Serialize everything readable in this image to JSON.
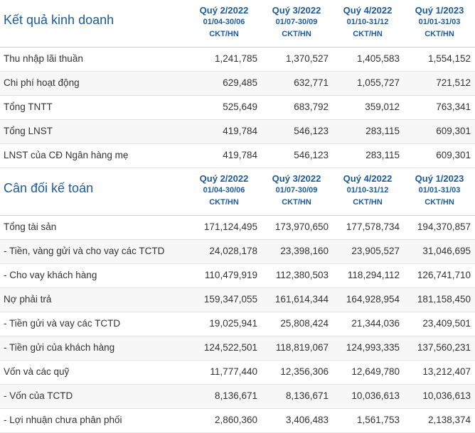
{
  "income": {
    "title": "Kết quả kinh doanh",
    "columns": [
      {
        "quarter": "Quý 2/2022",
        "dates": "01/04-30/06",
        "unit": "CKT/HN"
      },
      {
        "quarter": "Quý 3/2022",
        "dates": "01/07-30/09",
        "unit": "CKT/HN"
      },
      {
        "quarter": "Quý 4/2022",
        "dates": "01/10-31/12",
        "unit": "CKT/HN"
      },
      {
        "quarter": "Quý 1/2023",
        "dates": "01/01-31/03",
        "unit": "CKT/HN"
      }
    ],
    "rows": [
      {
        "label": "Thu nhập lãi thuần",
        "values": [
          "1,241,785",
          "1,370,527",
          "1,405,583",
          "1,554,152"
        ]
      },
      {
        "label": "Chi phí hoạt động",
        "values": [
          "629,485",
          "632,771",
          "1,055,727",
          "721,512"
        ]
      },
      {
        "label": "Tổng TNTT",
        "values": [
          "525,649",
          "683,792",
          "359,012",
          "763,341"
        ]
      },
      {
        "label": "Tổng LNST",
        "values": [
          "419,784",
          "546,123",
          "283,115",
          "609,301"
        ]
      },
      {
        "label": "LNST của CĐ Ngân hàng mẹ",
        "values": [
          "419,784",
          "546,123",
          "283,115",
          "609,301"
        ]
      }
    ]
  },
  "balance": {
    "title": "Cân đối kế toán",
    "columns": [
      {
        "quarter": "Quý 2/2022",
        "dates": "01/04-30/06",
        "unit": "CKT/HN"
      },
      {
        "quarter": "Quý 3/2022",
        "dates": "01/07-30/09",
        "unit": "CKT/HN"
      },
      {
        "quarter": "Quý 4/2022",
        "dates": "01/10-31/12",
        "unit": "CKT/HN"
      },
      {
        "quarter": "Quý 1/2023",
        "dates": "01/01-31/03",
        "unit": "CKT/HN"
      }
    ],
    "rows": [
      {
        "label": "Tổng tài sản",
        "values": [
          "171,124,495",
          "173,970,650",
          "177,578,734",
          "194,370,857"
        ]
      },
      {
        "label": "- Tiền, vàng gửi và cho vay các TCTD",
        "values": [
          "24,028,178",
          "23,398,160",
          "23,905,527",
          "31,046,695"
        ]
      },
      {
        "label": "- Cho vay khách hàng",
        "values": [
          "110,479,919",
          "112,380,503",
          "118,294,112",
          "126,741,710"
        ]
      },
      {
        "label": "Nợ phải trả",
        "values": [
          "159,347,055",
          "161,614,344",
          "164,928,954",
          "181,158,450"
        ]
      },
      {
        "label": "- Tiền gửi và vay các TCTD",
        "values": [
          "19,025,941",
          "25,808,424",
          "21,344,036",
          "23,409,501"
        ]
      },
      {
        "label": "- Tiền gửi của khách hàng",
        "values": [
          "124,522,501",
          "118,819,067",
          "124,993,335",
          "137,560,231"
        ]
      },
      {
        "label": "Vốn và các quỹ",
        "values": [
          "11,777,440",
          "12,356,306",
          "12,649,780",
          "13,212,407"
        ]
      },
      {
        "label": "- Vốn của TCTD",
        "values": [
          "8,136,671",
          "8,136,671",
          "10,036,613",
          "10,036,613"
        ]
      },
      {
        "label": "- Lợi nhuận chưa phân phối",
        "values": [
          "2,860,360",
          "3,406,483",
          "1,561,753",
          "2,138,374"
        ]
      }
    ]
  }
}
